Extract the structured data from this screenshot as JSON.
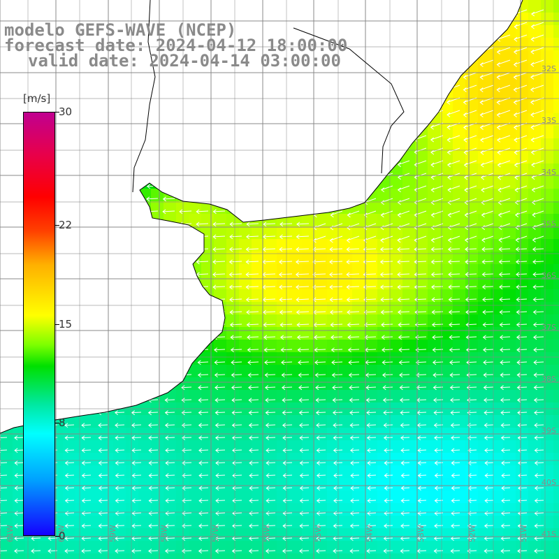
{
  "title": {
    "line1": "modelo GEFS-WAVE (NCEP)",
    "line2": "forecast date: 2024-04-12 18:00:00",
    "line3": "valid date: 2024-04-14 03:00:00"
  },
  "colorbar": {
    "units": "[m/s]",
    "min": 0,
    "max": 30,
    "ticks": [
      "30",
      "22",
      "15",
      "8",
      "0"
    ],
    "tick_values": [
      30,
      22,
      15,
      8,
      0
    ],
    "colors": [
      "#1400ff",
      "#00a0ff",
      "#00ffff",
      "#00e000",
      "#ffff00",
      "#ff4000",
      "#ff0000",
      "#c00090"
    ]
  },
  "map": {
    "lat_labels": [
      "32S",
      "33S",
      "34S",
      "35S",
      "36S",
      "37S",
      "38S",
      "39S",
      "40S",
      "41S"
    ],
    "lon_labels": [
      "61W",
      "60W",
      "59W",
      "58W",
      "57W",
      "56W",
      "55W",
      "54W",
      "53W",
      "52W",
      "51W"
    ],
    "wind_direction": "westward",
    "ocean_colors": {
      "strong": "#ffff00",
      "medium": "#5cff00",
      "weak": "#00e0ff",
      "calm": "#0090ff"
    },
    "land_color": "#ffffff",
    "grid_color": "#888888",
    "coast_color": "#000000"
  }
}
